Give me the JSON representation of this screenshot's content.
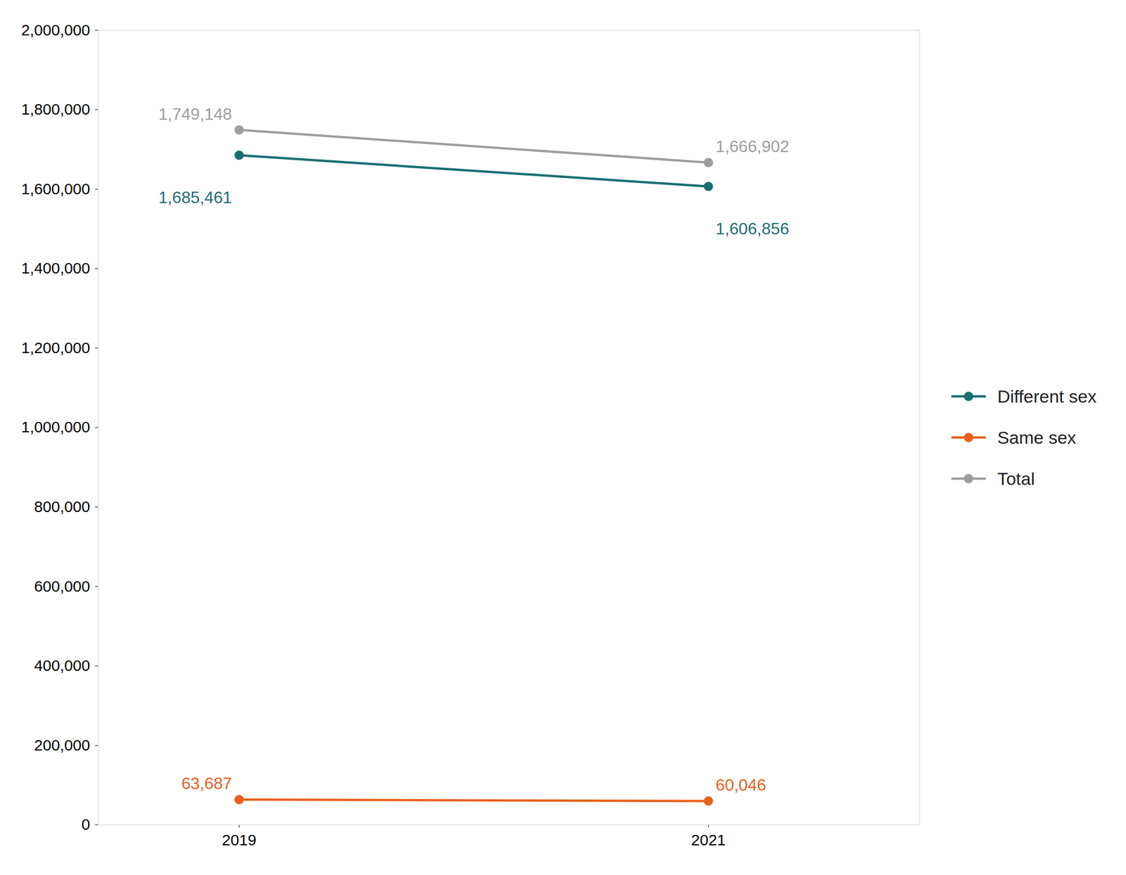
{
  "chart_data": {
    "type": "line",
    "x": [
      2019,
      2021
    ],
    "xlim": [
      2018.4,
      2021.9
    ],
    "xticks": [
      2019,
      2021
    ],
    "ylim": [
      0,
      2000000
    ],
    "yticks": [
      0,
      {
        "value": 200000,
        "label": "200,000"
      },
      {
        "value": 400000,
        "label": "400,000"
      },
      {
        "value": 600000,
        "label": "600,000"
      },
      {
        "value": 800000,
        "label": "800,000"
      },
      {
        "value": 1000000,
        "label": "1,000,000"
      },
      {
        "value": 1200000,
        "label": "1,200,000"
      },
      {
        "value": 1400000,
        "label": "1,400,000"
      },
      {
        "value": 1600000,
        "label": "1,600,000"
      },
      {
        "value": 1800000,
        "label": "1,800,000"
      },
      {
        "value": 2000000,
        "label": "2,000,000"
      }
    ],
    "grid": false,
    "legend": "right",
    "data_labels": true,
    "marker": "circle",
    "series": [
      {
        "name": "Different sex",
        "color": "#1a6e72",
        "values": [
          1685461,
          1606856
        ],
        "value_labels": [
          "1,685,461",
          "1,606,856"
        ]
      },
      {
        "name": "Same sex",
        "color": "#e8601c",
        "values": [
          63687,
          60046
        ],
        "value_labels": [
          "63,687",
          "60,046"
        ]
      },
      {
        "name": "Total",
        "color": "#9d9d9d",
        "values": [
          1749148,
          1666902
        ],
        "value_labels": [
          "1,749,148",
          "1,666,902"
        ]
      }
    ]
  }
}
